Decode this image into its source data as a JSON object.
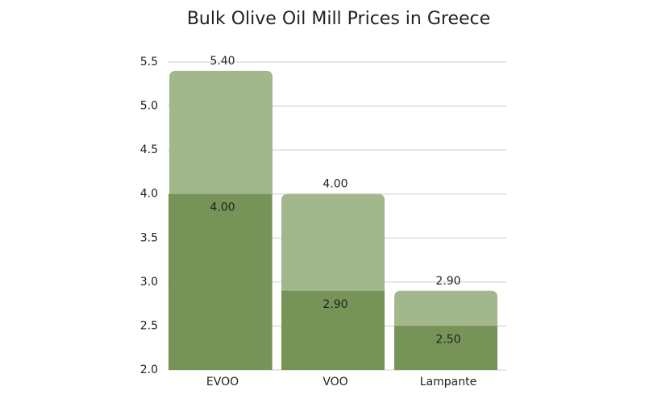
{
  "chart_data": {
    "type": "bar",
    "title": "Bulk Olive Oil Mill Prices in Greece",
    "categories": [
      "EVOO",
      "VOO",
      "Lampante"
    ],
    "series": [
      {
        "color": "#a2b78c",
        "values": [
          5.4,
          4.0,
          2.9
        ],
        "value_labels": [
          "5.40",
          "4.00",
          "2.90"
        ]
      },
      {
        "color": "#769457",
        "values": [
          4.0,
          2.9,
          2.5
        ],
        "value_labels": [
          "4.00",
          "2.90",
          "2.50"
        ]
      }
    ],
    "ylim": [
      2.0,
      5.5
    ],
    "yticks": [
      {
        "value": 2,
        "label": "2.0"
      },
      2.5,
      {
        "value": 3,
        "label": "3.0"
      },
      3.5,
      {
        "value": 4,
        "label": "4.0"
      },
      4.5,
      {
        "value": 5,
        "label": "5.0"
      },
      5.5
    ],
    "grid": true
  }
}
